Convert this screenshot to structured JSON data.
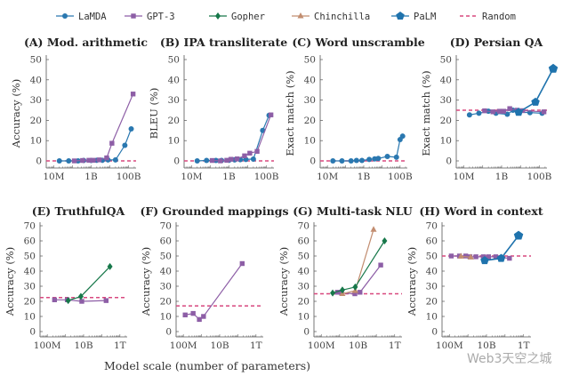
{
  "colors": {
    "LaMDA": "#2a78b0",
    "GPT-3": "#8d5ea6",
    "Gopher": "#17784a",
    "Chinchilla": "#c28d70",
    "PaLM": "#1f73ad",
    "Random": "#d8487f"
  },
  "legend": [
    "LaMDA",
    "GPT-3",
    "Gopher",
    "Chinchilla",
    "PaLM",
    "Random"
  ],
  "xlabel": "Model scale (number of parameters)",
  "watermark": "Web3天空之城",
  "chart_data": [
    {
      "type": "line",
      "title": "(A) Mod. arithmetic",
      "ylabel": "Accuracy (%)",
      "ylim": [
        0,
        50
      ],
      "yticks": [
        0,
        10,
        20,
        30,
        40,
        50
      ],
      "xscale": "log10",
      "xticks": [
        "10M",
        "1B",
        "100B"
      ],
      "random": 0,
      "series": [
        {
          "name": "LaMDA",
          "x": [
            7.3,
            7.8,
            8.3,
            8.6,
            9.0,
            9.3,
            9.6,
            9.9,
            10.3,
            10.8,
            11.14
          ],
          "y": [
            0,
            0,
            0,
            0.2,
            0.2,
            0.3,
            0.3,
            0.5,
            0.5,
            7.7,
            15.8
          ]
        },
        {
          "name": "GPT-3",
          "x": [
            8.1,
            8.54,
            8.88,
            9.11,
            9.43,
            9.83,
            10.11,
            11.24
          ],
          "y": [
            0,
            0.2,
            0.3,
            0.3,
            0.5,
            1.5,
            8.7,
            33
          ]
        }
      ]
    },
    {
      "type": "line",
      "title": "(B) IPA transliterate",
      "ylabel": "BLEU (%)",
      "ylim": [
        0,
        50
      ],
      "yticks": [
        0,
        10,
        20,
        30,
        40,
        50
      ],
      "xscale": "log10",
      "xticks": [
        "10M",
        "1B",
        "100B"
      ],
      "random": 0,
      "series": [
        {
          "name": "LaMDA",
          "x": [
            7.3,
            7.8,
            8.3,
            8.6,
            9.0,
            9.3,
            9.6,
            9.9,
            10.3,
            10.8,
            11.14
          ],
          "y": [
            0,
            0.2,
            0.2,
            0.2,
            0.3,
            0.5,
            0.6,
            0.7,
            0.9,
            15,
            22.5
          ]
        },
        {
          "name": "GPT-3",
          "x": [
            8.1,
            8.54,
            8.88,
            9.11,
            9.43,
            9.83,
            10.11,
            10.5,
            11.24
          ],
          "y": [
            0.2,
            0,
            0.3,
            0.8,
            1,
            2.5,
            3.8,
            4.7,
            22.7
          ]
        }
      ]
    },
    {
      "type": "line",
      "title": "(C) Word unscramble",
      "ylabel": "Exact match (%)",
      "ylim": [
        0,
        50
      ],
      "yticks": [
        0,
        10,
        20,
        30,
        40,
        50
      ],
      "xscale": "log10",
      "xticks": [
        "10M",
        "1B",
        "100B"
      ],
      "random": 0,
      "series": [
        {
          "name": "LaMDA",
          "x": [
            7.3,
            7.8,
            8.3,
            8.6,
            8.9,
            9.3,
            9.6,
            9.8,
            10.3,
            10.8,
            11.0,
            11.14
          ],
          "y": [
            0,
            0,
            0,
            0.2,
            0.2,
            0.7,
            1,
            1.2,
            2.2,
            1.8,
            10.5,
            12.2
          ]
        }
      ]
    },
    {
      "type": "line",
      "title": "(D) Persian QA",
      "ylabel": "Exact match (%)",
      "ylim": [
        0,
        50
      ],
      "yticks": [
        0,
        10,
        20,
        30,
        40,
        50
      ],
      "xscale": "log10",
      "xticks": [
        "10M",
        "1B",
        "100B"
      ],
      "random": 25,
      "series": [
        {
          "name": "LaMDA",
          "x": [
            7.3,
            7.8,
            8.3,
            8.7,
            9.3,
            9.6,
            9.9,
            10.5,
            11.14
          ],
          "y": [
            22.7,
            23.5,
            24.5,
            23.5,
            23,
            25,
            24,
            23.8,
            23.5
          ]
        },
        {
          "name": "GPT-3",
          "x": [
            8.1,
            8.54,
            8.88,
            9.11,
            9.43,
            9.83,
            10.11,
            11.24
          ],
          "y": [
            24.7,
            24.2,
            24.5,
            24.5,
            25.8,
            25,
            24.8,
            24.2
          ]
        },
        {
          "name": "PaLM",
          "x": [
            9.9,
            10.79,
            11.73
          ],
          "y": [
            24,
            29,
            45.5
          ]
        }
      ]
    },
    {
      "type": "line",
      "title": "(E) TruthfulQA",
      "ylabel": "Accuracy (%)",
      "ylim": [
        0,
        70
      ],
      "yticks": [
        0,
        10,
        20,
        30,
        40,
        50,
        60,
        70
      ],
      "xscale": "log10",
      "xticks": [
        "100M",
        "10B",
        "1T"
      ],
      "random": 22.5,
      "series": [
        {
          "name": "GPT-3",
          "x": [
            8.4,
            9.1,
            9.9,
            11.24
          ],
          "y": [
            21,
            21,
            20,
            20.5
          ]
        },
        {
          "name": "Gopher",
          "x": [
            9.15,
            9.85,
            11.45
          ],
          "y": [
            20.5,
            23.2,
            43
          ]
        }
      ]
    },
    {
      "type": "line",
      "title": "(F) Grounded mappings",
      "ylabel": "Accuracy (%)",
      "ylim": [
        0,
        70
      ],
      "yticks": [
        0,
        10,
        20,
        30,
        40,
        50,
        60,
        70
      ],
      "xscale": "log10",
      "xticks": [
        "100M",
        "10B",
        "1T"
      ],
      "random": 17,
      "series": [
        {
          "name": "GPT-3",
          "x": [
            8.1,
            8.54,
            8.88,
            9.11,
            11.24
          ],
          "y": [
            11,
            12,
            8,
            10,
            45
          ]
        }
      ]
    },
    {
      "type": "line",
      "title": "(G) Multi-task NLU",
      "ylabel": "Accuracy (%)",
      "ylim": [
        0,
        70
      ],
      "yticks": [
        0,
        10,
        20,
        30,
        40,
        50,
        60,
        70
      ],
      "xscale": "log10",
      "xticks": [
        "100M",
        "10B",
        "1T"
      ],
      "random": 25,
      "series": [
        {
          "name": "GPT-3",
          "x": [
            8.88,
            9.11,
            9.83,
            10.11,
            11.24
          ],
          "y": [
            26,
            25.5,
            25,
            26,
            44
          ]
        },
        {
          "name": "Chinchilla",
          "x": [
            9.15,
            9.85,
            10.85
          ],
          "y": [
            25,
            27,
            67.5
          ]
        },
        {
          "name": "Gopher",
          "x": [
            8.62,
            9.15,
            9.85,
            11.45
          ],
          "y": [
            25.5,
            27.5,
            29.5,
            60
          ]
        }
      ]
    },
    {
      "type": "line",
      "title": "(H) Word in context",
      "ylabel": "Accuracy (%)",
      "ylim": [
        0,
        70
      ],
      "yticks": [
        0,
        10,
        20,
        30,
        40,
        50,
        60,
        70
      ],
      "xscale": "log10",
      "xticks": [
        "100M",
        "10B",
        "1T"
      ],
      "random": 50,
      "series": [
        {
          "name": "GPT-3",
          "x": [
            8.1,
            8.54,
            8.88,
            9.11,
            9.43,
            9.83,
            10.11,
            10.5,
            11.24
          ],
          "y": [
            50,
            50,
            50,
            49.5,
            49.5,
            49.5,
            49.5,
            49.5,
            48.5
          ]
        },
        {
          "name": "Chinchilla",
          "x": [
            8.62,
            9.15
          ],
          "y": [
            49.8,
            49.2
          ]
        },
        {
          "name": "PaLM",
          "x": [
            9.9,
            10.79,
            11.73
          ],
          "y": [
            47,
            48.5,
            63.5
          ]
        }
      ]
    }
  ]
}
